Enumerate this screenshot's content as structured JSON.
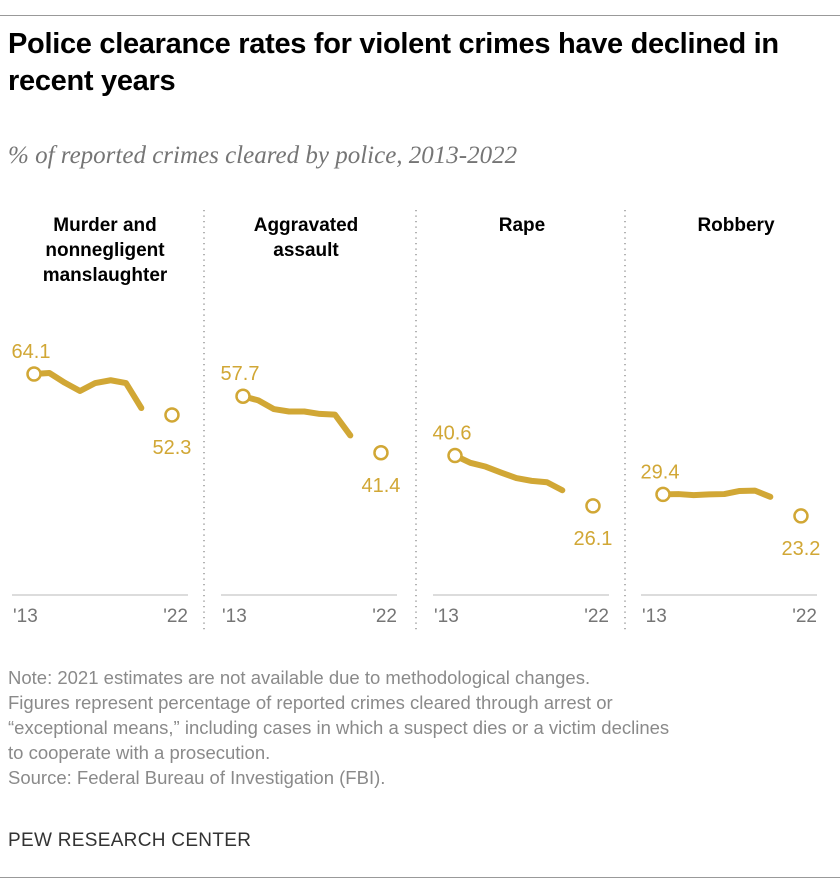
{
  "title": "Police clearance rates for violent crimes have declined in recent years",
  "subtitle": "% of reported crimes cleared by police, 2013-2022",
  "chart_data": {
    "type": "line",
    "unit": "%",
    "color": "#D1A735",
    "x_tick_labels": [
      "'13",
      "'22"
    ],
    "x": [
      2013,
      2014,
      2015,
      2016,
      2017,
      2018,
      2019,
      2020,
      2021,
      2022
    ],
    "panels": [
      {
        "title_lines": [
          "Murder and",
          "nonnegligent",
          "manslaughter"
        ],
        "values": [
          64.1,
          64.4,
          61.6,
          59.2,
          61.5,
          62.3,
          61.5,
          54.3,
          null,
          52.3
        ],
        "first_label": "64.1",
        "last_label": "52.3"
      },
      {
        "title_lines": [
          "Aggravated",
          "assault"
        ],
        "values": [
          57.7,
          56.5,
          54.0,
          53.3,
          53.3,
          52.6,
          52.4,
          46.4,
          null,
          41.4
        ],
        "first_label": "57.7",
        "last_label": "41.4"
      },
      {
        "title_lines": [
          "Rape"
        ],
        "values": [
          40.6,
          38.5,
          37.4,
          35.7,
          34.1,
          33.3,
          32.9,
          30.6,
          null,
          26.1
        ],
        "first_label": "40.6",
        "last_label": "26.1"
      },
      {
        "title_lines": [
          "Robbery"
        ],
        "values": [
          29.4,
          29.5,
          29.2,
          29.4,
          29.5,
          30.4,
          30.5,
          28.7,
          null,
          23.2
        ],
        "first_label": "29.4",
        "last_label": "23.2"
      }
    ]
  },
  "notes": [
    "Note: 2021 estimates are not available due to methodological changes.",
    "Figures represent percentage of reported crimes cleared through arrest or",
    "“exceptional means,” including cases in which a suspect dies or a victim declines",
    "to cooperate with a prosecution.",
    "Source: Federal Bureau of Investigation (FBI)."
  ],
  "brand": "PEW RESEARCH CENTER"
}
